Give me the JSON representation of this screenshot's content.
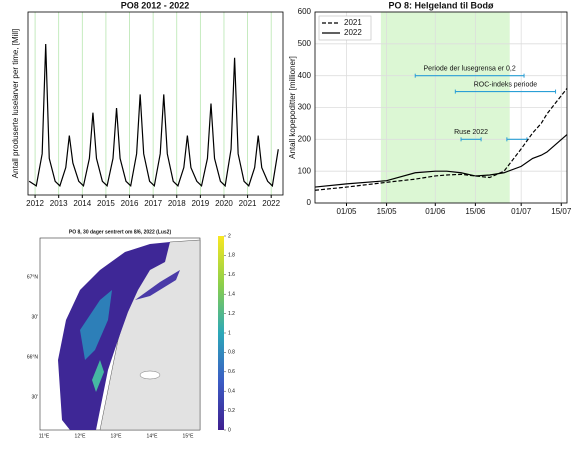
{
  "chart_data": [
    {
      "type": "line",
      "title": "PO8 2012 - 2022",
      "ylabel": "Antall produserte luselarver per time, [Mill]",
      "xlim": [
        2011.7,
        2022.5
      ],
      "xticks": [
        2012,
        2013,
        2014,
        2015,
        2016,
        2017,
        2018,
        2019,
        2020,
        2021,
        2022
      ],
      "ylim": [
        0,
        40
      ],
      "grid": true,
      "grid_color": "#b8e6b0",
      "x": [
        2011.75,
        2012.05,
        2012.3,
        2012.45,
        2012.6,
        2012.85,
        2013.05,
        2013.3,
        2013.45,
        2013.6,
        2013.85,
        2014.05,
        2014.3,
        2014.45,
        2014.6,
        2014.85,
        2015.05,
        2015.3,
        2015.45,
        2015.6,
        2015.85,
        2016.05,
        2016.3,
        2016.45,
        2016.6,
        2016.85,
        2017.05,
        2017.3,
        2017.45,
        2017.6,
        2017.85,
        2018.05,
        2018.3,
        2018.45,
        2018.6,
        2018.85,
        2019.05,
        2019.3,
        2019.45,
        2019.6,
        2019.85,
        2020.05,
        2020.3,
        2020.45,
        2020.6,
        2020.85,
        2021.05,
        2021.3,
        2021.45,
        2021.6,
        2021.85,
        2022.05,
        2022.3
      ],
      "series": [
        {
          "name": "PO8",
          "color": "#000000",
          "dash": false,
          "values": [
            3,
            2,
            9,
            33,
            8,
            3,
            2,
            6,
            13,
            7,
            3,
            2,
            8,
            18,
            8,
            3,
            2,
            8,
            19,
            8,
            3,
            2,
            9,
            22,
            9,
            3,
            2,
            9,
            22,
            9,
            3,
            2,
            6,
            13,
            6,
            3,
            2,
            8,
            20,
            8,
            3,
            2,
            10,
            30,
            9,
            3,
            2,
            6,
            13,
            6,
            3,
            2,
            10
          ]
        }
      ]
    },
    {
      "type": "line",
      "title": "PO 8: Helgeland til Bodø",
      "ylabel": "Antall kopepoditter [millioner]",
      "xlim": [
        "20/04",
        "17/07"
      ],
      "xticks": [
        "01/05",
        "15/05",
        "01/06",
        "15/06",
        "01/07",
        "15/07"
      ],
      "ylim": [
        0,
        600
      ],
      "yticks": [
        0,
        100,
        200,
        300,
        400,
        500,
        600
      ],
      "grid": true,
      "grid_color": "#dddddd",
      "shade": {
        "start": "13/05",
        "end": "27/06",
        "color": "#dcf7d4"
      },
      "legend": "upper left",
      "x": [
        "20/04",
        "01/05",
        "15/05",
        "25/05",
        "01/06",
        "05/06",
        "10/06",
        "15/06",
        "20/06",
        "25/06",
        "01/07",
        "05/07",
        "08/07",
        "10/07",
        "17/07"
      ],
      "series": [
        {
          "name": "2021",
          "color": "#000000",
          "dash": true,
          "values": [
            40,
            50,
            65,
            75,
            85,
            88,
            90,
            85,
            80,
            100,
            170,
            220,
            250,
            280,
            360
          ]
        },
        {
          "name": "2022",
          "color": "#000000",
          "dash": false,
          "values": [
            50,
            60,
            70,
            95,
            100,
            100,
            95,
            85,
            88,
            95,
            115,
            140,
            150,
            160,
            215
          ]
        }
      ],
      "annotations": [
        {
          "text": "Periode der lusegrensa er 0,2",
          "start": "25/05",
          "end": "02/07",
          "y": 400
        },
        {
          "text": "ROC-indeks periode",
          "start": "08/06",
          "end": "13/07",
          "y": 350
        },
        {
          "text": "Ruse 2022",
          "start": "10/06",
          "end": "17/06",
          "y": 200
        },
        {
          "start": "26/06",
          "end": "03/07",
          "y": 200
        }
      ]
    },
    {
      "type": "map",
      "title": "PO 8, 30 dager sentrert om 8/6, 2022 (Lus2)",
      "lonticks": [
        "11°E",
        "12°E",
        "13°E",
        "14°E",
        "15°E"
      ],
      "latticks": [
        "67°N",
        "30'",
        "66°N",
        "30'"
      ],
      "colorbar": {
        "lim": [
          0,
          2
        ],
        "ticks": [
          0,
          0.2,
          0.4,
          0.6,
          0.8,
          1,
          1.2,
          1.4,
          1.6,
          1.8,
          2
        ]
      }
    }
  ]
}
